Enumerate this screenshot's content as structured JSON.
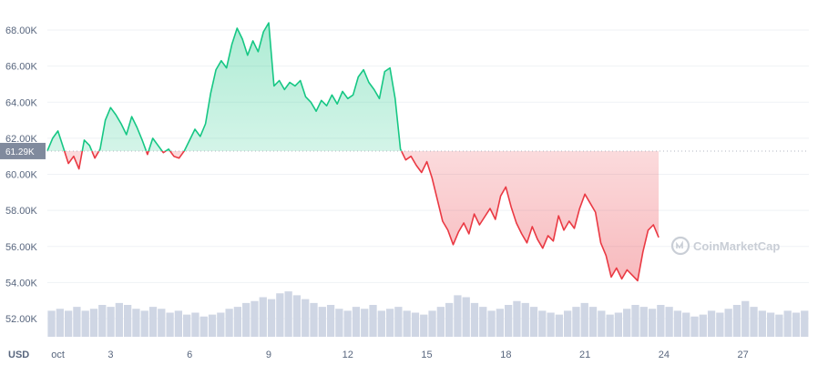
{
  "chart_data": {
    "type": "line",
    "currency": "USD",
    "reference_label": "61.29K",
    "reference_value": 61290,
    "ylim": [
      51000,
      69000
    ],
    "y_ticks": [
      {
        "value": 52000,
        "label": "52.00K"
      },
      {
        "value": 54000,
        "label": "54.00K"
      },
      {
        "value": 56000,
        "label": "56.00K"
      },
      {
        "value": 58000,
        "label": "58.00K"
      },
      {
        "value": 60000,
        "label": "60.00K"
      },
      {
        "value": 62000,
        "label": "62.00K"
      },
      {
        "value": 64000,
        "label": "64.00K"
      },
      {
        "value": 66000,
        "label": "66.00K"
      },
      {
        "value": 68000,
        "label": "68.00K"
      }
    ],
    "xlim": [
      0.6,
      29.5
    ],
    "x_ticks": [
      {
        "day": 1,
        "label": "oct"
      },
      {
        "day": 3,
        "label": "3"
      },
      {
        "day": 6,
        "label": "6"
      },
      {
        "day": 9,
        "label": "9"
      },
      {
        "day": 12,
        "label": "12"
      },
      {
        "day": 15,
        "label": "15"
      },
      {
        "day": 18,
        "label": "18"
      },
      {
        "day": 21,
        "label": "21"
      },
      {
        "day": 24,
        "label": "24"
      },
      {
        "day": 27,
        "label": "27"
      }
    ],
    "series": [
      {
        "points": [
          [
            0.6,
            61300
          ],
          [
            0.8,
            62000
          ],
          [
            1.0,
            62400
          ],
          [
            1.2,
            61500
          ],
          [
            1.4,
            60600
          ],
          [
            1.6,
            61000
          ],
          [
            1.8,
            60300
          ],
          [
            2.0,
            61900
          ],
          [
            2.2,
            61600
          ],
          [
            2.4,
            60900
          ],
          [
            2.6,
            61400
          ],
          [
            2.8,
            63000
          ],
          [
            3.0,
            63700
          ],
          [
            3.2,
            63300
          ],
          [
            3.4,
            62800
          ],
          [
            3.6,
            62200
          ],
          [
            3.8,
            63200
          ],
          [
            4.0,
            62600
          ],
          [
            4.2,
            61900
          ],
          [
            4.4,
            61100
          ],
          [
            4.6,
            62000
          ],
          [
            4.8,
            61600
          ],
          [
            5.0,
            61200
          ],
          [
            5.2,
            61400
          ],
          [
            5.4,
            61000
          ],
          [
            5.6,
            60900
          ],
          [
            5.8,
            61300
          ],
          [
            6.0,
            61900
          ],
          [
            6.2,
            62500
          ],
          [
            6.4,
            62100
          ],
          [
            6.6,
            62800
          ],
          [
            6.8,
            64500
          ],
          [
            7.0,
            65800
          ],
          [
            7.2,
            66300
          ],
          [
            7.4,
            65900
          ],
          [
            7.6,
            67200
          ],
          [
            7.8,
            68100
          ],
          [
            8.0,
            67500
          ],
          [
            8.2,
            66600
          ],
          [
            8.4,
            67400
          ],
          [
            8.6,
            66800
          ],
          [
            8.8,
            67900
          ],
          [
            9.0,
            68400
          ],
          [
            9.2,
            64900
          ],
          [
            9.4,
            65200
          ],
          [
            9.6,
            64700
          ],
          [
            9.8,
            65100
          ],
          [
            10.0,
            64900
          ],
          [
            10.2,
            65200
          ],
          [
            10.4,
            64300
          ],
          [
            10.6,
            64000
          ],
          [
            10.8,
            63500
          ],
          [
            11.0,
            64100
          ],
          [
            11.2,
            63800
          ],
          [
            11.4,
            64400
          ],
          [
            11.6,
            63900
          ],
          [
            11.8,
            64600
          ],
          [
            12.0,
            64200
          ],
          [
            12.2,
            64400
          ],
          [
            12.4,
            65400
          ],
          [
            12.6,
            65800
          ],
          [
            12.8,
            65100
          ],
          [
            13.0,
            64700
          ],
          [
            13.2,
            64200
          ],
          [
            13.4,
            65700
          ],
          [
            13.6,
            65900
          ],
          [
            13.8,
            64200
          ],
          [
            14.0,
            61400
          ],
          [
            14.2,
            60800
          ],
          [
            14.4,
            61000
          ],
          [
            14.6,
            60500
          ],
          [
            14.8,
            60100
          ],
          [
            15.0,
            60700
          ],
          [
            15.2,
            59800
          ],
          [
            15.4,
            58600
          ],
          [
            15.6,
            57400
          ],
          [
            15.8,
            56900
          ],
          [
            16.0,
            56100
          ],
          [
            16.2,
            56800
          ],
          [
            16.4,
            57300
          ],
          [
            16.6,
            56700
          ],
          [
            16.8,
            57800
          ],
          [
            17.0,
            57200
          ],
          [
            17.4,
            58100
          ],
          [
            17.6,
            57500
          ],
          [
            17.8,
            58800
          ],
          [
            18.0,
            59300
          ],
          [
            18.2,
            58200
          ],
          [
            18.4,
            57300
          ],
          [
            18.6,
            56700
          ],
          [
            18.8,
            56200
          ],
          [
            19.0,
            57100
          ],
          [
            19.2,
            56400
          ],
          [
            19.4,
            55900
          ],
          [
            19.6,
            56600
          ],
          [
            19.8,
            56300
          ],
          [
            20.0,
            57700
          ],
          [
            20.2,
            56900
          ],
          [
            20.4,
            57400
          ],
          [
            20.6,
            57000
          ],
          [
            20.8,
            58100
          ],
          [
            21.0,
            58900
          ],
          [
            21.2,
            58400
          ],
          [
            21.4,
            57900
          ],
          [
            21.6,
            56200
          ],
          [
            21.8,
            55500
          ],
          [
            22.0,
            54300
          ],
          [
            22.2,
            54800
          ],
          [
            22.4,
            54200
          ],
          [
            22.6,
            54700
          ],
          [
            22.8,
            54400
          ],
          [
            23.0,
            54100
          ],
          [
            23.2,
            55700
          ],
          [
            23.4,
            56900
          ],
          [
            23.6,
            57200
          ],
          [
            23.8,
            56500
          ]
        ]
      }
    ],
    "volume": [
      52500,
      52600,
      52500,
      52700,
      52500,
      52600,
      52800,
      52700,
      52900,
      52800,
      52600,
      52500,
      52700,
      52600,
      52400,
      52500,
      52300,
      52400,
      52200,
      52300,
      52400,
      52600,
      52700,
      52900,
      53000,
      53200,
      53100,
      53400,
      53500,
      53300,
      53100,
      52900,
      52700,
      52800,
      52600,
      52500,
      52700,
      52600,
      52800,
      52500,
      52600,
      52700,
      52500,
      52400,
      52300,
      52500,
      52700,
      52900,
      53300,
      53200,
      52900,
      52700,
      52500,
      52600,
      52800,
      53000,
      52900,
      52700,
      52500,
      52400,
      52300,
      52500,
      52700,
      52900,
      52700,
      52500,
      52300,
      52400,
      52600,
      52800,
      52700,
      52600,
      52800,
      52700,
      52500,
      52400,
      52200,
      52300,
      52500,
      52400,
      52600,
      52800,
      53000,
      52700,
      52500,
      52400,
      52300,
      52500,
      52400,
      52500
    ]
  },
  "watermark": "CoinMarketCap",
  "colors": {
    "up_line": "#16c784",
    "down_line": "#ea3943",
    "grid": "#eff2f5",
    "volume": "#cfd6e4",
    "axis_text": "#58667e"
  }
}
